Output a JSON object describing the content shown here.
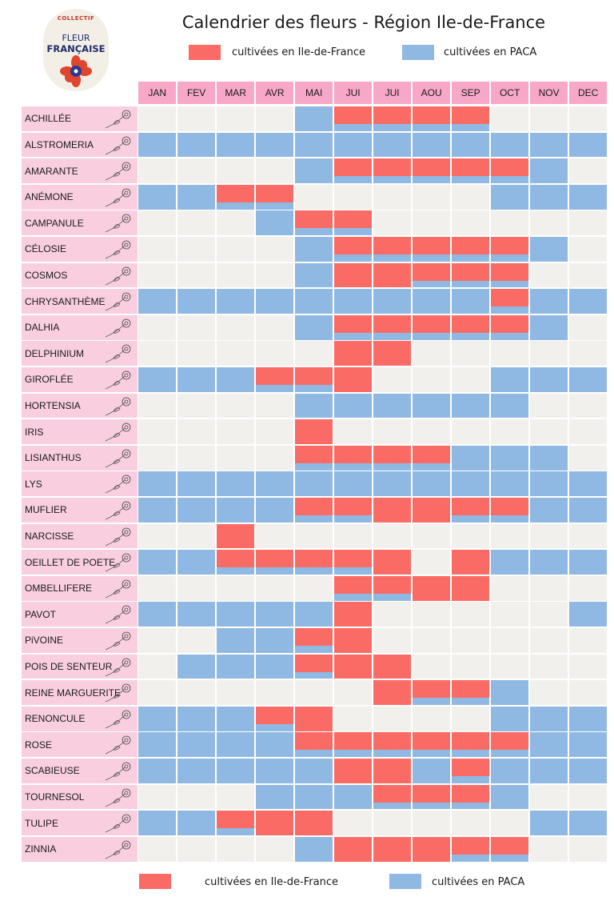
{
  "logo": {
    "line1": "COLLECTIF",
    "line2": "FLEUR",
    "line3": "FRANÇAISE"
  },
  "title": "Calendrier des fleurs - Région Ile-de-France",
  "legend": {
    "idf_label": "cultivées en Ile-de-France",
    "paca_label": "cultivées en PACA",
    "idf_color": "#fb6b65",
    "paca_color": "#8fb9e3",
    "empty_color": "#f2f0ed"
  },
  "chart_data": {
    "type": "table",
    "title": "Calendrier des fleurs - Région Ile-de-France",
    "months": [
      "JAN",
      "FEV",
      "MAR",
      "AVR",
      "MAI",
      "JUI",
      "JUI",
      "AOU",
      "SEP",
      "OCT",
      "NOV",
      "DEC"
    ],
    "series": [
      {
        "name": "cultivées en Ile-de-France",
        "color": "#fb6b65"
      },
      {
        "name": "cultivées en PACA",
        "color": "#8fb9e3"
      }
    ],
    "encoding": "per month: I = Ile-de-France only, P = PACA only, B = both, - = none",
    "flowers": [
      {
        "name": "ACHILLÉE",
        "months": [
          "-",
          "-",
          "-",
          "-",
          "P",
          "B",
          "B",
          "B",
          "B",
          "-",
          "-",
          "-"
        ]
      },
      {
        "name": "ALSTROMERIA",
        "months": [
          "P",
          "P",
          "P",
          "P",
          "P",
          "P",
          "P",
          "P",
          "P",
          "P",
          "P",
          "P"
        ]
      },
      {
        "name": "AMARANTE",
        "months": [
          "-",
          "-",
          "-",
          "-",
          "P",
          "B",
          "B",
          "B",
          "B",
          "B",
          "P",
          "-"
        ]
      },
      {
        "name": "ANÉMONE",
        "months": [
          "P",
          "P",
          "B",
          "B",
          "-",
          "-",
          "-",
          "-",
          "-",
          "P",
          "P",
          "P"
        ]
      },
      {
        "name": "CAMPANULE",
        "months": [
          "-",
          "-",
          "-",
          "P",
          "B",
          "B",
          "-",
          "-",
          "-",
          "-",
          "-",
          "-"
        ]
      },
      {
        "name": "CÉLOSIE",
        "months": [
          "-",
          "-",
          "-",
          "-",
          "P",
          "B",
          "B",
          "B",
          "B",
          "B",
          "P",
          "-"
        ]
      },
      {
        "name": "COSMOS",
        "months": [
          "-",
          "-",
          "-",
          "-",
          "P",
          "I",
          "I",
          "B",
          "B",
          "B",
          "-",
          "-"
        ]
      },
      {
        "name": "CHRYSANTHÈME",
        "months": [
          "P",
          "P",
          "P",
          "P",
          "P",
          "P",
          "P",
          "P",
          "P",
          "B",
          "P",
          "P"
        ]
      },
      {
        "name": "DALHIA",
        "months": [
          "-",
          "-",
          "-",
          "-",
          "P",
          "B",
          "B",
          "B",
          "B",
          "B",
          "P",
          "-"
        ]
      },
      {
        "name": "DELPHINIUM",
        "months": [
          "-",
          "-",
          "-",
          "-",
          "-",
          "I",
          "I",
          "-",
          "-",
          "-",
          "-",
          "-"
        ]
      },
      {
        "name": "GIROFLÉE",
        "months": [
          "P",
          "P",
          "P",
          "B",
          "B",
          "I",
          "-",
          "-",
          "-",
          "P",
          "P",
          "P"
        ]
      },
      {
        "name": "HORTENSIA",
        "months": [
          "-",
          "-",
          "-",
          "-",
          "P",
          "P",
          "P",
          "P",
          "P",
          "P",
          "-",
          "-"
        ]
      },
      {
        "name": "IRIS",
        "months": [
          "-",
          "-",
          "-",
          "-",
          "I",
          "-",
          "-",
          "-",
          "-",
          "-",
          "-",
          "-"
        ]
      },
      {
        "name": "LISIANTHUS",
        "months": [
          "-",
          "-",
          "-",
          "-",
          "B",
          "B",
          "B",
          "B",
          "P",
          "P",
          "P",
          "-"
        ]
      },
      {
        "name": "LYS",
        "months": [
          "P",
          "P",
          "P",
          "P",
          "P",
          "P",
          "P",
          "P",
          "P",
          "P",
          "P",
          "P"
        ]
      },
      {
        "name": "MUFLIER",
        "months": [
          "P",
          "P",
          "P",
          "P",
          "B",
          "B",
          "I",
          "I",
          "B",
          "B",
          "P",
          "P"
        ]
      },
      {
        "name": "NARCISSE",
        "months": [
          "-",
          "-",
          "I",
          "-",
          "-",
          "-",
          "-",
          "-",
          "-",
          "-",
          "-",
          "-"
        ]
      },
      {
        "name": "OEILLET DE POETE",
        "months": [
          "P",
          "P",
          "B",
          "B",
          "B",
          "B",
          "I",
          "-",
          "I",
          "P",
          "P",
          "P"
        ]
      },
      {
        "name": "OMBELLIFERE",
        "months": [
          "-",
          "-",
          "-",
          "-",
          "-",
          "B",
          "B",
          "I",
          "I",
          "-",
          "-",
          "-"
        ]
      },
      {
        "name": "PAVOT",
        "months": [
          "P",
          "P",
          "P",
          "P",
          "P",
          "I",
          "-",
          "-",
          "-",
          "-",
          "-",
          "P"
        ]
      },
      {
        "name": "PiVOINE",
        "months": [
          "-",
          "-",
          "P",
          "P",
          "B",
          "I",
          "-",
          "-",
          "-",
          "-",
          "-",
          "-"
        ]
      },
      {
        "name": "POIS DE SENTEUR",
        "months": [
          "-",
          "P",
          "P",
          "P",
          "B",
          "I",
          "I",
          "-",
          "-",
          "-",
          "-",
          "-"
        ]
      },
      {
        "name": "REINE MARGUERITE",
        "months": [
          "-",
          "-",
          "-",
          "-",
          "-",
          "-",
          "I",
          "B",
          "B",
          "P",
          "-",
          "-"
        ]
      },
      {
        "name": "RENONCULE",
        "months": [
          "P",
          "P",
          "P",
          "B",
          "I",
          "-",
          "-",
          "-",
          "-",
          "P",
          "P",
          "P"
        ]
      },
      {
        "name": "ROSE",
        "months": [
          "P",
          "P",
          "P",
          "P",
          "B",
          "B",
          "B",
          "B",
          "B",
          "B",
          "P",
          "P"
        ]
      },
      {
        "name": "SCABIEUSE",
        "months": [
          "P",
          "P",
          "P",
          "P",
          "P",
          "I",
          "I",
          "P",
          "B",
          "P",
          "P",
          "P"
        ]
      },
      {
        "name": "TOURNESOL",
        "months": [
          "-",
          "-",
          "-",
          "P",
          "P",
          "P",
          "B",
          "B",
          "B",
          "P",
          "-",
          "-"
        ]
      },
      {
        "name": "TULIPE",
        "months": [
          "P",
          "P",
          "B",
          "I",
          "I",
          "-",
          "-",
          "-",
          "-",
          "-",
          "P",
          "P"
        ]
      },
      {
        "name": "ZINNIA",
        "months": [
          "-",
          "-",
          "-",
          "-",
          "P",
          "I",
          "I",
          "I",
          "B",
          "B",
          "-",
          "-"
        ]
      }
    ]
  }
}
